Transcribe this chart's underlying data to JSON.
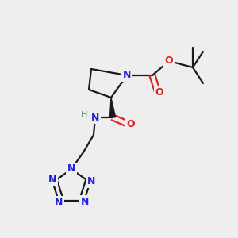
{
  "bg_color": "#eeeeee",
  "bond_color": "#1a1a1a",
  "N_color": "#2222dd",
  "O_color": "#dd2222",
  "H_color": "#4a9a6a",
  "lw": 1.6,
  "dbo": 0.012,
  "figsize": [
    3.0,
    3.0
  ],
  "dpi": 100,
  "xlim": [
    0,
    300
  ],
  "ylim": [
    0,
    300
  ]
}
